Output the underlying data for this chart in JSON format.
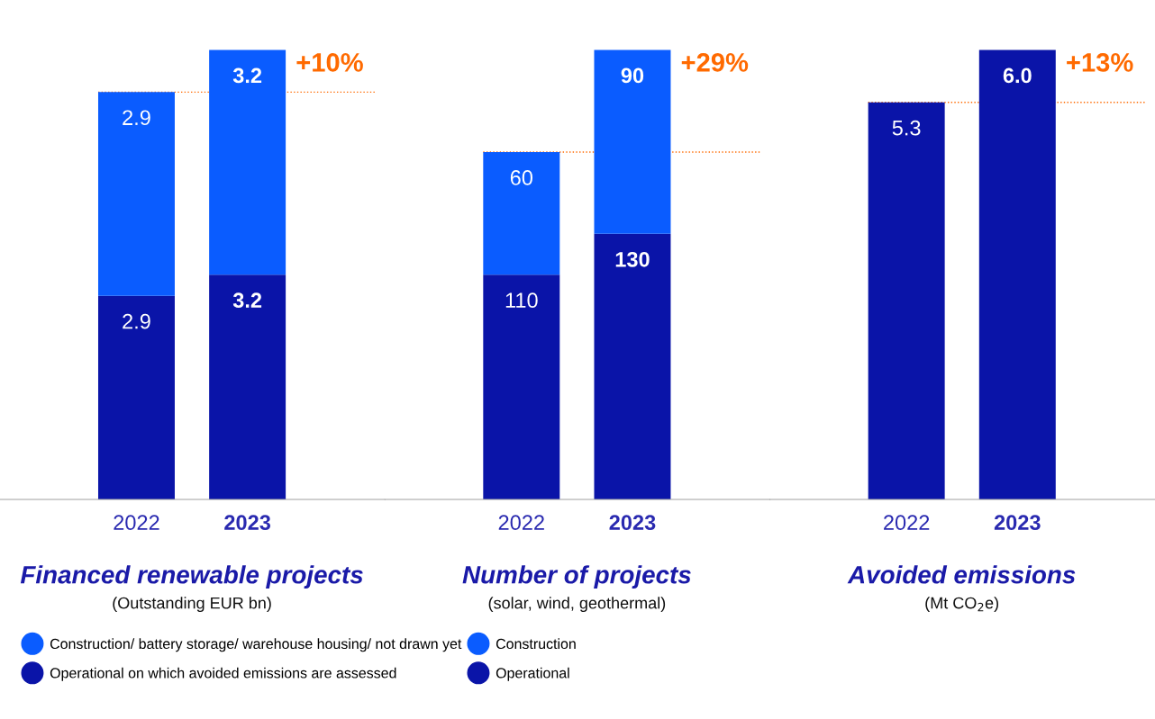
{
  "chart_data": [
    {
      "type": "bar",
      "stacked": true,
      "categories": [
        "2022",
        "2023"
      ],
      "series": [
        {
          "name": "Operational on which avoided emissions are assessed",
          "color": "#0a14a8",
          "values": [
            2.9,
            3.2
          ]
        },
        {
          "name": "Construction/ battery storage/ warehouse housing/ not drawn yet",
          "color": "#0a5cff",
          "values": [
            2.9,
            3.2
          ]
        }
      ],
      "data_labels": true,
      "title": "Financed renewable projects",
      "subtitle": "(Outstanding EUR bn)",
      "ref_lines": [
        {
          "axis": "y",
          "value": 5.8,
          "color": "#ff6a00",
          "line_style": "dotted"
        }
      ],
      "annotations": [
        {
          "text": "+10%",
          "x": "2023",
          "y": 6.4
        }
      ],
      "legend": "bottom",
      "grid": false
    },
    {
      "type": "bar",
      "stacked": true,
      "categories": [
        "2022",
        "2023"
      ],
      "series": [
        {
          "name": "Operational",
          "color": "#0a14a8",
          "values": [
            110,
            130
          ]
        },
        {
          "name": "Construction",
          "color": "#0a5cff",
          "values": [
            60,
            90
          ]
        }
      ],
      "data_labels": true,
      "title": "Number of projects",
      "subtitle": "(solar, wind, geothermal)",
      "ref_lines": [
        {
          "axis": "y",
          "value": 170,
          "color": "#ff6a00",
          "line_style": "dotted"
        }
      ],
      "annotations": [
        {
          "text": "+29%",
          "x": "2023",
          "y": 220
        }
      ],
      "legend": "bottom",
      "grid": false
    },
    {
      "type": "bar",
      "categories": [
        "2022",
        "2023"
      ],
      "series": [
        {
          "color": "#0a14a8",
          "values": [
            5.3,
            6.0
          ],
          "value_labels": [
            "5.3",
            "6.0"
          ]
        }
      ],
      "title": "Avoided emissions",
      "subtitle": "(Mt CO$_{2}$e)",
      "ref_lines": [
        {
          "axis": "y",
          "value": 5.3,
          "color": "#ff6a00",
          "line_style": "dotted"
        }
      ],
      "annotations": [
        {
          "text": "+13%",
          "x": "2023",
          "y": 6.0
        }
      ],
      "legend": false,
      "grid": false
    }
  ]
}
